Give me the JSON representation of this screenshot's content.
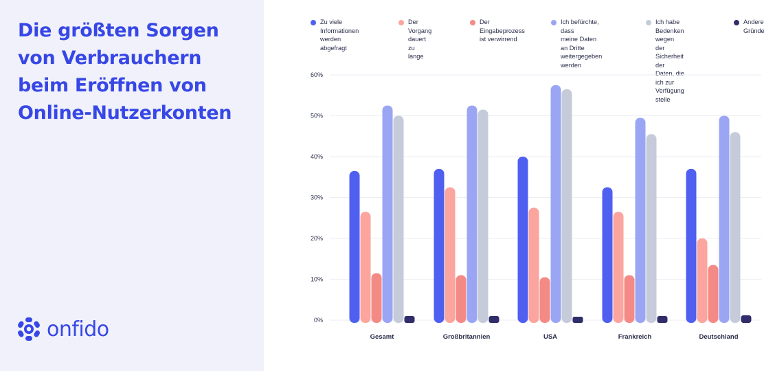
{
  "panel": {
    "title_lines": [
      "Die größten Sorgen",
      "von Verbrauchern",
      "beim Eröffnen von",
      "Online-Nutzerkonten"
    ],
    "logo_text": "onfido",
    "logo_icon": "onfido-logo-icon"
  },
  "legend": [
    {
      "label": "Zu viele Informationen\nwerden abgefragt",
      "color": "#4f5ff0"
    },
    {
      "label": "Der Vorgang\ndauert zu lange",
      "color": "#fba59e"
    },
    {
      "label": "Der Eingabeprozess\nist verwirrend",
      "color": "#f48a86"
    },
    {
      "label": "Ich befürchte, dass\nmeine Daten an Dritte\nweitergegeben werden",
      "color": "#9aa6f3"
    },
    {
      "label": "Ich habe Bedenken\nwegen der Sicherheit\nder Daten, die ich zur\nVerfügung stelle",
      "color": "#c5cbd9"
    },
    {
      "label": "Andere\nGründe",
      "color": "#302d6a"
    }
  ],
  "chart_data": {
    "type": "bar",
    "categories": [
      "Gesamt",
      "Großbritannien",
      "USA",
      "Frankreich",
      "Deutschland"
    ],
    "y_ticks": [
      "0%",
      "10%",
      "20%",
      "30%",
      "40%",
      "50%",
      "60%"
    ],
    "ylim": [
      0,
      60
    ],
    "grid": true,
    "legend_position": "top",
    "series": [
      {
        "name": "Zu viele Informationen werden abgefragt",
        "values": [
          36.5,
          37,
          40,
          32.5,
          37
        ]
      },
      {
        "name": "Der Vorgang dauert zu lange",
        "values": [
          26.5,
          32.5,
          27.5,
          26.5,
          20
        ]
      },
      {
        "name": "Der Eingabeprozess ist verwirrend",
        "values": [
          11.5,
          11,
          10.5,
          11,
          13.5
        ]
      },
      {
        "name": "Ich befürchte, dass meine Daten an Dritte weitergegeben werden",
        "values": [
          52.5,
          52.5,
          57.5,
          49.5,
          50
        ]
      },
      {
        "name": "Ich habe Bedenken wegen der Sicherheit der Daten, die ich zur Verfügung stelle",
        "values": [
          50,
          51.5,
          56.5,
          45.5,
          46
        ]
      },
      {
        "name": "Andere Gründe",
        "values": [
          1,
          1,
          0.5,
          1,
          1.2
        ]
      }
    ]
  }
}
